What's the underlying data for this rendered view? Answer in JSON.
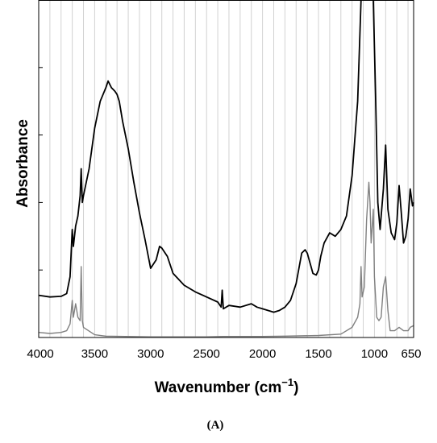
{
  "chart_data": {
    "type": "line",
    "xlabel": "Wavenumber (cm",
    "xlabel_superscript": "−1",
    "xlabel_suffix": ")",
    "ylabel": "Absorbance",
    "panel_label": "(A)",
    "x_reversed": true,
    "xlim": [
      4000,
      650
    ],
    "ylim": [
      0,
      1.0
    ],
    "x_ticks": [
      4000,
      3500,
      3000,
      2500,
      2000,
      1500,
      1000,
      650
    ],
    "x_tick_labels": [
      "4000",
      "3500",
      "3000",
      "2500",
      "2000",
      "1500",
      "1000",
      "650"
    ],
    "y_ticks": [
      0.2,
      0.4,
      0.6,
      0.8
    ],
    "grid": true,
    "legend": "none",
    "series": [
      {
        "color": "#000000",
        "points": [
          [
            4000,
            0.125
          ],
          [
            3900,
            0.12
          ],
          [
            3800,
            0.122
          ],
          [
            3750,
            0.13
          ],
          [
            3720,
            0.18
          ],
          [
            3700,
            0.32
          ],
          [
            3690,
            0.27
          ],
          [
            3670,
            0.33
          ],
          [
            3650,
            0.36
          ],
          [
            3630,
            0.42
          ],
          [
            3620,
            0.5
          ],
          [
            3610,
            0.4
          ],
          [
            3600,
            0.42
          ],
          [
            3550,
            0.5
          ],
          [
            3500,
            0.62
          ],
          [
            3450,
            0.7
          ],
          [
            3400,
            0.74
          ],
          [
            3380,
            0.76
          ],
          [
            3350,
            0.74
          ],
          [
            3320,
            0.73
          ],
          [
            3300,
            0.72
          ],
          [
            3280,
            0.7
          ],
          [
            3250,
            0.64
          ],
          [
            3200,
            0.56
          ],
          [
            3150,
            0.46
          ],
          [
            3100,
            0.37
          ],
          [
            3050,
            0.29
          ],
          [
            3000,
            0.205
          ],
          [
            2950,
            0.23
          ],
          [
            2920,
            0.27
          ],
          [
            2900,
            0.265
          ],
          [
            2850,
            0.24
          ],
          [
            2800,
            0.19
          ],
          [
            2700,
            0.155
          ],
          [
            2600,
            0.135
          ],
          [
            2500,
            0.12
          ],
          [
            2400,
            0.105
          ],
          [
            2370,
            0.09
          ],
          [
            2360,
            0.14
          ],
          [
            2350,
            0.085
          ],
          [
            2300,
            0.095
          ],
          [
            2200,
            0.09
          ],
          [
            2100,
            0.1
          ],
          [
            2050,
            0.09
          ],
          [
            2000,
            0.085
          ],
          [
            1950,
            0.08
          ],
          [
            1900,
            0.075
          ],
          [
            1850,
            0.08
          ],
          [
            1800,
            0.09
          ],
          [
            1750,
            0.11
          ],
          [
            1700,
            0.16
          ],
          [
            1650,
            0.25
          ],
          [
            1620,
            0.26
          ],
          [
            1600,
            0.25
          ],
          [
            1550,
            0.19
          ],
          [
            1520,
            0.185
          ],
          [
            1500,
            0.2
          ],
          [
            1480,
            0.24
          ],
          [
            1450,
            0.28
          ],
          [
            1400,
            0.31
          ],
          [
            1350,
            0.3
          ],
          [
            1300,
            0.32
          ],
          [
            1250,
            0.36
          ],
          [
            1200,
            0.48
          ],
          [
            1150,
            0.7
          ],
          [
            1120,
            1.0
          ],
          [
            1080,
            1.0
          ],
          [
            1040,
            1.0
          ],
          [
            1010,
            1.0
          ],
          [
            990,
            0.72
          ],
          [
            970,
            0.4
          ],
          [
            950,
            0.32
          ],
          [
            920,
            0.44
          ],
          [
            900,
            0.57
          ],
          [
            880,
            0.38
          ],
          [
            850,
            0.31
          ],
          [
            820,
            0.29
          ],
          [
            800,
            0.34
          ],
          [
            780,
            0.45
          ],
          [
            760,
            0.37
          ],
          [
            740,
            0.28
          ],
          [
            720,
            0.3
          ],
          [
            700,
            0.35
          ],
          [
            680,
            0.44
          ],
          [
            660,
            0.39
          ],
          [
            650,
            0.4
          ]
        ]
      },
      {
        "color": "#808080",
        "points": [
          [
            4000,
            0.015
          ],
          [
            3900,
            0.012
          ],
          [
            3800,
            0.015
          ],
          [
            3750,
            0.02
          ],
          [
            3720,
            0.04
          ],
          [
            3700,
            0.11
          ],
          [
            3690,
            0.06
          ],
          [
            3670,
            0.1
          ],
          [
            3650,
            0.06
          ],
          [
            3630,
            0.05
          ],
          [
            3620,
            0.21
          ],
          [
            3610,
            0.05
          ],
          [
            3600,
            0.03
          ],
          [
            3500,
            0.008
          ],
          [
            3400,
            0.004
          ],
          [
            3000,
            0.002
          ],
          [
            2500,
            0.002
          ],
          [
            2350,
            0.003
          ],
          [
            2000,
            0.003
          ],
          [
            1800,
            0.004
          ],
          [
            1500,
            0.006
          ],
          [
            1300,
            0.01
          ],
          [
            1200,
            0.03
          ],
          [
            1150,
            0.06
          ],
          [
            1130,
            0.1
          ],
          [
            1120,
            0.21
          ],
          [
            1110,
            0.12
          ],
          [
            1090,
            0.15
          ],
          [
            1070,
            0.35
          ],
          [
            1050,
            0.46
          ],
          [
            1040,
            0.4
          ],
          [
            1030,
            0.28
          ],
          [
            1010,
            0.38
          ],
          [
            1000,
            0.18
          ],
          [
            980,
            0.06
          ],
          [
            960,
            0.05
          ],
          [
            940,
            0.06
          ],
          [
            920,
            0.15
          ],
          [
            900,
            0.18
          ],
          [
            880,
            0.08
          ],
          [
            860,
            0.02
          ],
          [
            820,
            0.02
          ],
          [
            780,
            0.03
          ],
          [
            740,
            0.02
          ],
          [
            700,
            0.02
          ],
          [
            680,
            0.03
          ],
          [
            650,
            0.035
          ]
        ]
      }
    ]
  }
}
